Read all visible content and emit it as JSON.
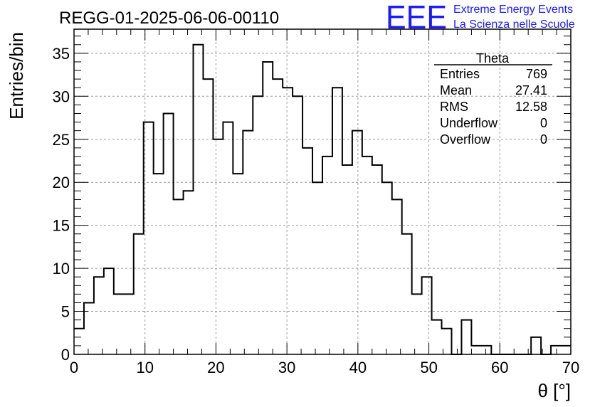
{
  "header": {
    "run_title": "REGG-01-2025-06-06-00110",
    "logo_text": "EEE",
    "logo_line1": "Extreme Energy Events",
    "logo_line2": "La Scienza nelle Scuole"
  },
  "stats_box": {
    "title": "Theta",
    "rows": [
      {
        "label": "Entries",
        "value": "769"
      },
      {
        "label": "Mean",
        "value": "27.41"
      },
      {
        "label": "RMS",
        "value": "12.58"
      },
      {
        "label": "Underflow",
        "value": "0"
      },
      {
        "label": "Overflow",
        "value": "0"
      }
    ]
  },
  "colors": {
    "logo": "#1a1aff",
    "line": "#000000",
    "grid": "#9a9a9a"
  },
  "chart_data": {
    "type": "histogram",
    "xlabel": "θ [°]",
    "ylabel": "Entries/bin",
    "xlim": [
      0,
      70
    ],
    "ylim": [
      0,
      37.8
    ],
    "grid": true,
    "bin_width": 1.4,
    "bin_start": 0,
    "values": [
      3,
      6,
      9,
      10,
      7,
      7,
      14,
      27,
      21,
      28,
      18,
      19,
      36,
      32,
      25,
      27,
      21,
      26,
      30,
      34,
      32,
      31,
      30,
      24,
      20,
      23,
      31,
      22,
      26,
      23,
      22,
      20,
      18,
      14,
      7,
      9,
      4,
      3,
      0,
      4,
      1,
      1,
      0,
      0,
      0,
      0,
      2,
      0,
      1,
      1
    ],
    "x_ticks": [
      0,
      10,
      20,
      30,
      40,
      50,
      60,
      70
    ],
    "y_ticks": [
      0,
      5,
      10,
      15,
      20,
      25,
      30,
      35
    ]
  }
}
